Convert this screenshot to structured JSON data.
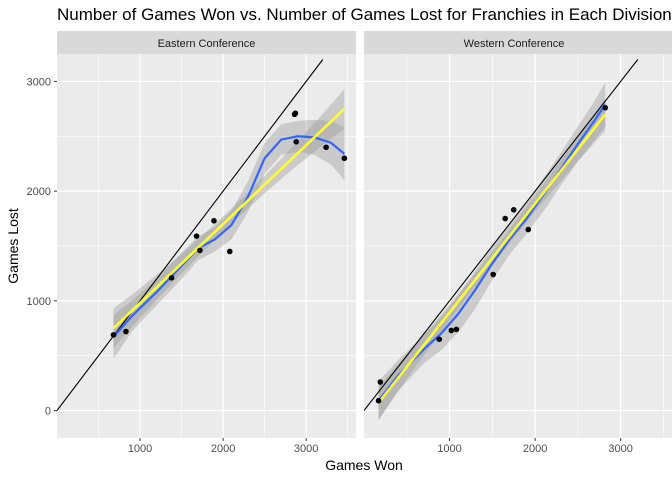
{
  "chart_data": {
    "type": "scatter",
    "title": "Number of Games Won vs. Number of Games Lost for Franchies in Each Division",
    "xlabel": "Games Won",
    "ylabel": "Games Lost",
    "xlim": [
      0,
      3600
    ],
    "ylim": [
      -250,
      3250
    ],
    "x_ticks": [
      "1000",
      "2000",
      "3000"
    ],
    "y_ticks": [
      "0",
      "1000",
      "2000",
      "3000"
    ],
    "grid": true,
    "colors": {
      "panel_bg": "#ebebeb",
      "strip_bg": "#d9d9d9",
      "grid": "#ffffff",
      "points": "#000000",
      "loess": "#3366ff",
      "linear_fit": "#ffff33",
      "ribbon": "#999999",
      "reference_line": "#000000"
    },
    "panels": [
      {
        "strip": "Eastern Conference",
        "points": [
          {
            "x": 680,
            "y": 690
          },
          {
            "x": 830,
            "y": 720
          },
          {
            "x": 1380,
            "y": 1210
          },
          {
            "x": 1680,
            "y": 1590
          },
          {
            "x": 1720,
            "y": 1460
          },
          {
            "x": 1890,
            "y": 1730
          },
          {
            "x": 2080,
            "y": 1450
          },
          {
            "x": 2860,
            "y": 2700
          },
          {
            "x": 2870,
            "y": 2710
          },
          {
            "x": 2880,
            "y": 2450
          },
          {
            "x": 3240,
            "y": 2400
          },
          {
            "x": 3460,
            "y": 2300
          }
        ],
        "loess": {
          "x": [
            680,
            900,
            1200,
            1500,
            1700,
            1900,
            2100,
            2300,
            2500,
            2700,
            2900,
            3100,
            3300,
            3460
          ],
          "y": [
            670,
            860,
            1080,
            1320,
            1480,
            1560,
            1690,
            1950,
            2300,
            2470,
            2500,
            2490,
            2440,
            2340
          ],
          "se": [
            200,
            140,
            120,
            120,
            110,
            110,
            130,
            140,
            140,
            140,
            140,
            160,
            200,
            240
          ]
        },
        "linear_fit": {
          "x": [
            680,
            3460
          ],
          "y": [
            750,
            2750
          ],
          "se_ends": 180,
          "se_mid": 70
        },
        "reference_line": [
          [
            0,
            0
          ],
          [
            3200,
            3200
          ]
        ]
      },
      {
        "strip": "Western Conference",
        "points": [
          {
            "x": 170,
            "y": 90
          },
          {
            "x": 190,
            "y": 260
          },
          {
            "x": 880,
            "y": 650
          },
          {
            "x": 1020,
            "y": 730
          },
          {
            "x": 1080,
            "y": 740
          },
          {
            "x": 1510,
            "y": 1240
          },
          {
            "x": 1650,
            "y": 1750
          },
          {
            "x": 1750,
            "y": 1830
          },
          {
            "x": 1920,
            "y": 1650
          },
          {
            "x": 2820,
            "y": 2760
          }
        ],
        "loess": {
          "x": [
            170,
            400,
            700,
            900,
            1100,
            1300,
            1500,
            1700,
            1900,
            2100,
            2300,
            2500,
            2700,
            2820
          ],
          "y": [
            90,
            320,
            560,
            700,
            880,
            1100,
            1340,
            1560,
            1750,
            1970,
            2200,
            2430,
            2650,
            2790
          ],
          "se": [
            180,
            140,
            130,
            150,
            170,
            170,
            150,
            140,
            140,
            150,
            150,
            160,
            180,
            200
          ]
        },
        "linear_fit": {
          "x": [
            170,
            2820
          ],
          "y": [
            70,
            2700
          ],
          "se_ends": 150,
          "se_mid": 60
        },
        "reference_line": [
          [
            0,
            0
          ],
          [
            3200,
            3200
          ]
        ]
      }
    ]
  }
}
